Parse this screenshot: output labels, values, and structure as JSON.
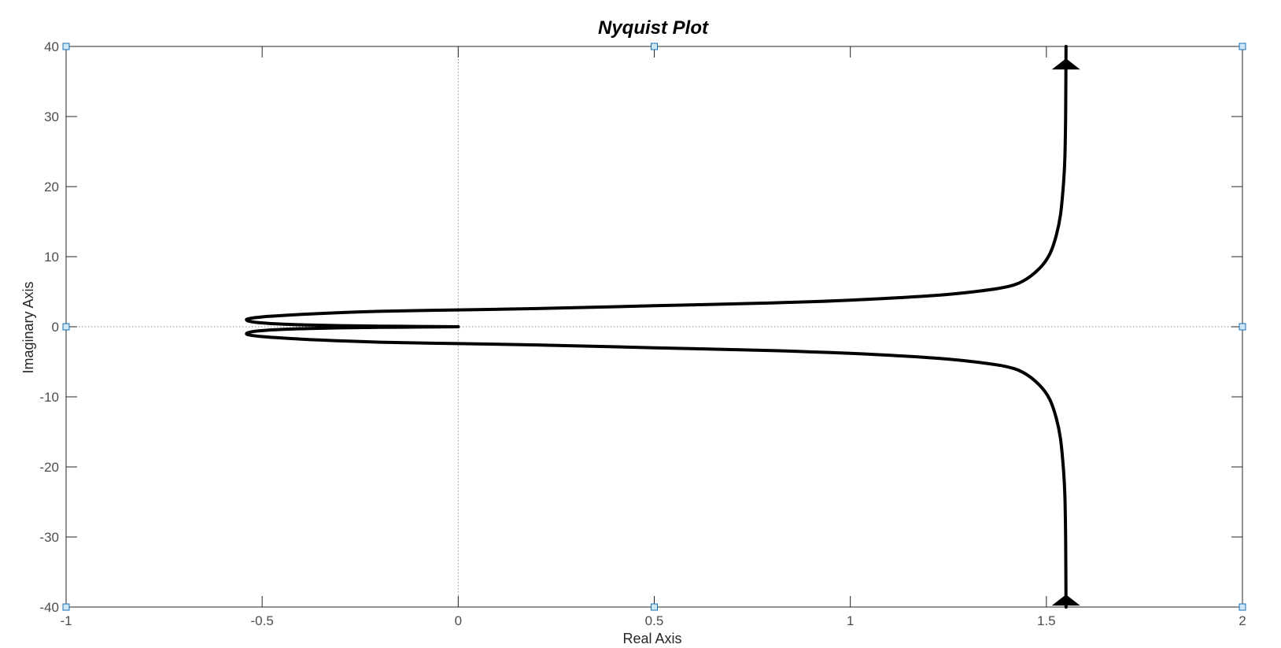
{
  "chart_data": {
    "type": "line",
    "title": "Nyquist Plot",
    "xlabel": "Real Axis",
    "ylabel": "Imaginary Axis",
    "xlim": [
      -1,
      2
    ],
    "ylim": [
      -40,
      40
    ],
    "x_ticks": [
      -1,
      -0.5,
      0,
      0.5,
      1,
      1.5,
      2
    ],
    "x_tick_labels": [
      "-1",
      "-0.5",
      "0",
      "0.5",
      "1",
      "1.5",
      "2"
    ],
    "y_ticks": [
      -40,
      -30,
      -20,
      -10,
      0,
      10,
      20,
      30,
      40
    ],
    "y_tick_labels": [
      "-40",
      "-30",
      "-20",
      "-10",
      "0",
      "10",
      "20",
      "30",
      "40"
    ],
    "grid": false,
    "zero_lines": true,
    "colors": {
      "curve": "#000000",
      "axes": "#262626",
      "zero_line": "#8c8c8c",
      "handle_fill": "#cfe8f7",
      "handle_stroke": "#1a6fb0"
    },
    "series": [
      {
        "x": [
          1.55,
          1.549,
          1.547,
          1.543,
          1.536,
          1.525,
          1.508,
          1.482,
          1.44,
          1.39,
          1.3,
          1.2,
          1.0,
          0.8,
          0.5,
          0.2,
          0.0,
          -0.2,
          -0.35,
          -0.45,
          -0.5,
          -0.53,
          -0.54,
          -0.53,
          -0.5,
          -0.45,
          -0.38,
          -0.3,
          -0.2,
          -0.1,
          0.0
        ],
        "y": [
          40,
          30,
          24,
          20,
          16,
          13,
          10.3,
          8.3,
          6.5,
          5.6,
          4.9,
          4.4,
          3.8,
          3.4,
          3.0,
          2.6,
          2.4,
          2.2,
          1.9,
          1.6,
          1.4,
          1.2,
          1.0,
          0.75,
          0.55,
          0.38,
          0.25,
          0.16,
          0.09,
          0.04,
          0.0
        ]
      },
      {
        "x": [
          1.55,
          1.549,
          1.547,
          1.543,
          1.536,
          1.525,
          1.508,
          1.482,
          1.44,
          1.39,
          1.3,
          1.2,
          1.0,
          0.8,
          0.5,
          0.2,
          0.0,
          -0.2,
          -0.35,
          -0.45,
          -0.5,
          -0.53,
          -0.54,
          -0.53,
          -0.5,
          -0.45,
          -0.38,
          -0.3,
          -0.2,
          -0.1,
          0.0
        ],
        "y": [
          -40,
          -30,
          -24,
          -20,
          -16,
          -13,
          -10.3,
          -8.3,
          -6.5,
          -5.6,
          -4.9,
          -4.4,
          -3.8,
          -3.4,
          -3.0,
          -2.6,
          -2.4,
          -2.2,
          -1.9,
          -1.6,
          -1.4,
          -1.2,
          -1.0,
          -0.75,
          -0.55,
          -0.38,
          -0.25,
          -0.16,
          -0.09,
          -0.04,
          0.0
        ]
      }
    ],
    "arrows": [
      {
        "x": 1.55,
        "y": 37.5,
        "direction": "up"
      },
      {
        "x": 1.55,
        "y": -39.0,
        "direction": "up"
      }
    ],
    "handles": [
      {
        "x": -1,
        "y": 40
      },
      {
        "x": 0.5,
        "y": 40
      },
      {
        "x": 2,
        "y": 40
      },
      {
        "x": -1,
        "y": 0
      },
      {
        "x": 2,
        "y": 0
      },
      {
        "x": -1,
        "y": -40
      },
      {
        "x": 0.5,
        "y": -40
      },
      {
        "x": 2,
        "y": -40
      }
    ]
  }
}
